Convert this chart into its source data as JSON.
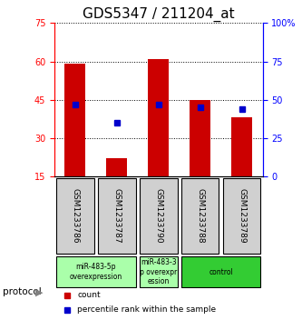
{
  "title": "GDS5347 / 211204_at",
  "samples": [
    "GSM1233786",
    "GSM1233787",
    "GSM1233790",
    "GSM1233788",
    "GSM1233789"
  ],
  "bar_values": [
    59.0,
    22.0,
    61.0,
    45.0,
    38.0
  ],
  "percentile_values": [
    47.0,
    35.0,
    47.0,
    45.0,
    44.0
  ],
  "bar_bottom": 15,
  "ylim_left": [
    15,
    75
  ],
  "ylim_right": [
    0,
    100
  ],
  "yticks_left": [
    15,
    30,
    45,
    60,
    75
  ],
  "yticks_right": [
    0,
    25,
    50,
    75,
    100
  ],
  "ytick_labels_right": [
    "0",
    "25",
    "50",
    "75",
    "100%"
  ],
  "bar_color": "#cc0000",
  "marker_color": "#0000cc",
  "group_defs": [
    {
      "indices": [
        0,
        1
      ],
      "label": "miR-483-5p\noverexpression",
      "color": "#aaffaa"
    },
    {
      "indices": [
        2,
        2
      ],
      "label": "miR-483-3\np overexpr\nession",
      "color": "#aaffaa"
    },
    {
      "indices": [
        3,
        4
      ],
      "label": "control",
      "color": "#33cc33"
    }
  ],
  "protocol_label": "protocol",
  "legend_bar_label": "count",
  "legend_marker_label": "percentile rank within the sample",
  "background_color": "#ffffff",
  "bar_width": 0.5,
  "title_fontsize": 11,
  "tick_fontsize": 7
}
